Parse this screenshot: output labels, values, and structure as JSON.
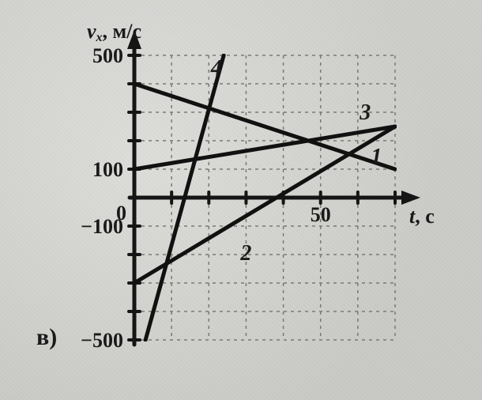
{
  "chart": {
    "type": "line",
    "background_color": "#d8d8d5",
    "grid_color": "#7a7a74",
    "axis_color": "#151515",
    "axis_width": 5,
    "tick_width": 4,
    "data_line_width": 5,
    "data_line_color": "#111111",
    "font_family": "Georgia, Times New Roman, serif",
    "x": {
      "label": "t, с",
      "label_fontsize": 26,
      "min": 0,
      "max": 70,
      "tick_step": 10,
      "tick_labels": {
        "50": "50"
      },
      "tick_fontsize": 26
    },
    "y": {
      "label": "vₓ, м/с",
      "label_fontsize": 26,
      "min": -500,
      "max": 500,
      "tick_step": 100,
      "tick_labels": {
        "500": "500",
        "100": "100",
        "0": "0",
        "-100": "−100",
        "-500": "−500"
      },
      "tick_fontsize": 26
    },
    "series": [
      {
        "name": "1",
        "points": [
          [
            0,
            400
          ],
          [
            70,
            100
          ]
        ],
        "label_at": [
          65,
          120
        ],
        "label_fontsize": 28
      },
      {
        "name": "2",
        "points": [
          [
            0,
            -300
          ],
          [
            70,
            250
          ]
        ],
        "label_at": [
          30,
          -220
        ],
        "label_fontsize": 28
      },
      {
        "name": "3",
        "points": [
          [
            0,
            100
          ],
          [
            70,
            250
          ]
        ],
        "label_at": [
          62,
          275
        ],
        "label_fontsize": 28
      },
      {
        "name": "4",
        "points": [
          [
            3,
            -500
          ],
          [
            24,
            500
          ]
        ],
        "label_at": [
          22,
          430
        ],
        "label_fontsize": 28
      }
    ],
    "subplot_label": "в)",
    "subplot_label_fontsize": 30
  }
}
